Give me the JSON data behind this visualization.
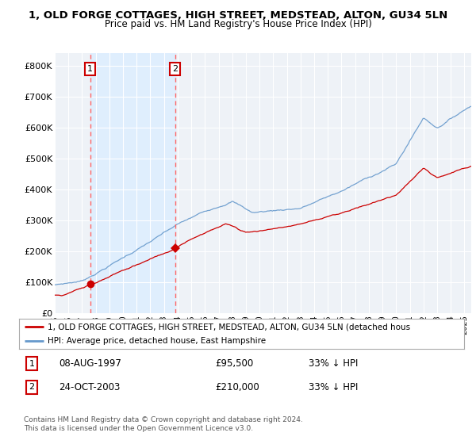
{
  "title": "1, OLD FORGE COTTAGES, HIGH STREET, MEDSTEAD, ALTON, GU34 5LN",
  "subtitle": "Price paid vs. HM Land Registry's House Price Index (HPI)",
  "sale1_date": 1997.6,
  "sale1_price": 95500,
  "sale1_label": "1",
  "sale1_display": "08-AUG-1997",
  "sale2_date": 2003.81,
  "sale2_price": 210000,
  "sale2_label": "2",
  "sale2_display": "24-OCT-2003",
  "legend_red": "1, OLD FORGE COTTAGES, HIGH STREET, MEDSTEAD, ALTON, GU34 5LN (detached hous",
  "legend_blue": "HPI: Average price, detached house, East Hampshire",
  "footnote": "Contains HM Land Registry data © Crown copyright and database right 2024.\nThis data is licensed under the Open Government Licence v3.0.",
  "xmin": 1995.0,
  "xmax": 2025.5,
  "ymin": 0,
  "ymax": 840000,
  "red_color": "#cc0000",
  "blue_color": "#6699cc",
  "blue_fill_color": "#ddeeff",
  "dashed_color": "#ff6666",
  "background_plot": "#eef2f7",
  "yticks": [
    0,
    100000,
    200000,
    300000,
    400000,
    500000,
    600000,
    700000,
    800000
  ],
  "ytick_labels": [
    "£0",
    "£100K",
    "£200K",
    "£300K",
    "£400K",
    "£500K",
    "£600K",
    "£700K",
    "£800K"
  ]
}
